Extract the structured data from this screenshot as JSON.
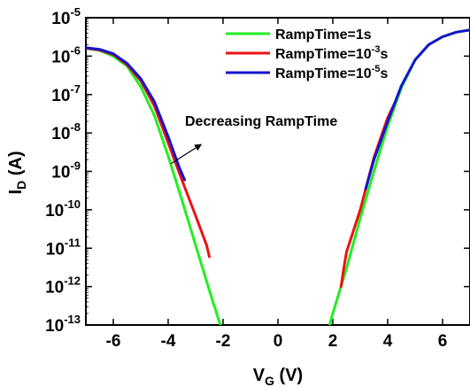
{
  "chart_data": {
    "type": "line",
    "xlabel": {
      "main": "V",
      "sub": "G",
      "unit": " (V)"
    },
    "ylabel": {
      "main": "I",
      "sub": "D",
      "unit": " (A)"
    },
    "xlim": [
      -7,
      7
    ],
    "ylim_exp": [
      -13,
      -5
    ],
    "x_ticks": [
      -6,
      -4,
      -2,
      0,
      2,
      4,
      6
    ],
    "x_tick_labels": [
      "-6",
      "-4",
      "-2",
      "0",
      "2",
      "4",
      "6"
    ],
    "y_ticks_exp": [
      -13,
      -12,
      -11,
      -10,
      -9,
      -8,
      -7,
      -6,
      -5
    ],
    "y_tick_labels": [
      {
        "base": "10",
        "exp": "-13"
      },
      {
        "base": "10",
        "exp": "-12"
      },
      {
        "base": "10",
        "exp": "-11"
      },
      {
        "base": "10",
        "exp": "-10"
      },
      {
        "base": "10",
        "exp": "-9"
      },
      {
        "base": "10",
        "exp": "-8"
      },
      {
        "base": "10",
        "exp": "-7"
      },
      {
        "base": "10",
        "exp": "-6"
      },
      {
        "base": "10",
        "exp": "-5"
      }
    ],
    "y_scale": "log",
    "legend_position": "top-right",
    "series": [
      {
        "name": "RampTime=1s",
        "legend": {
          "text": "RampTime=1s",
          "sup": "",
          "suffix": ""
        },
        "color": "#22ee22",
        "segments": [
          [
            [
              -7,
              1.6e-06
            ],
            [
              -6.5,
              1.4e-06
            ],
            [
              -6,
              1e-06
            ],
            [
              -5.5,
              5.5e-07
            ],
            [
              -5,
              1.6e-07
            ],
            [
              -4.5,
              2.8e-08
            ],
            [
              -4,
              2.5e-09
            ],
            [
              -3.5,
              1.8e-10
            ],
            [
              -3,
              1.2e-11
            ],
            [
              -2.5,
              8e-13
            ],
            [
              -2,
              6e-14
            ],
            [
              -1.6,
              1e-14
            ]
          ],
          [
            [
              1.5,
              1e-14
            ],
            [
              2,
              2e-13
            ],
            [
              2.5,
              3e-12
            ],
            [
              3,
              6e-11
            ],
            [
              3.5,
              1e-09
            ],
            [
              4,
              1.5e-08
            ],
            [
              4.5,
              1.5e-07
            ],
            [
              5,
              8e-07
            ],
            [
              5.5,
              2e-06
            ],
            [
              6,
              3.2e-06
            ],
            [
              6.5,
              4.2e-06
            ],
            [
              7,
              4.8e-06
            ]
          ]
        ]
      },
      {
        "name": "RampTime=10-3s",
        "legend": {
          "text": "RampTime=10",
          "sup": "-3",
          "suffix": "s"
        },
        "color": "#ee1111",
        "segments": [
          [
            [
              -7,
              1.6e-06
            ],
            [
              -6.5,
              1.45e-06
            ],
            [
              -6,
              1.1e-06
            ],
            [
              -5.5,
              6e-07
            ],
            [
              -5,
              2.3e-07
            ],
            [
              -4.5,
              5e-08
            ],
            [
              -4,
              5.5e-09
            ],
            [
              -3.5,
              6e-10
            ],
            [
              -3,
              7e-11
            ],
            [
              -2.6,
              1.2e-11
            ],
            [
              -2.5,
              6e-12
            ]
          ],
          [
            [
              2.3,
              1e-12
            ],
            [
              2.4,
              3e-12
            ],
            [
              2.5,
              8e-12
            ],
            [
              3,
              1e-10
            ],
            [
              3.5,
              2.3e-09
            ],
            [
              4,
              2.5e-08
            ],
            [
              4.3,
              7e-08
            ]
          ]
        ]
      },
      {
        "name": "RampTime=10-5s",
        "legend": {
          "text": "RampTime=10",
          "sup": "-5",
          "suffix": "s"
        },
        "color": "#1515cc",
        "segments": [
          [
            [
              -7,
              1.65e-06
            ],
            [
              -6.5,
              1.5e-06
            ],
            [
              -6,
              1.15e-06
            ],
            [
              -5.5,
              6.5e-07
            ],
            [
              -5,
              2.6e-07
            ],
            [
              -4.5,
              6.5e-08
            ],
            [
              -4,
              8e-09
            ],
            [
              -3.6,
              1.3e-09
            ],
            [
              -3.4,
              6e-10
            ]
          ],
          [
            [
              3.2,
              3.5e-10
            ],
            [
              3.5,
              2e-09
            ],
            [
              4,
              2e-08
            ],
            [
              4.5,
              1.7e-07
            ],
            [
              5,
              8e-07
            ],
            [
              5.5,
              2e-06
            ],
            [
              6,
              3.2e-06
            ],
            [
              6.5,
              4.2e-06
            ],
            [
              7,
              4.8e-06
            ]
          ]
        ]
      }
    ],
    "annotation": {
      "text": "Decreasing RampTime",
      "arrow_from": [
        -3.9,
        -8.8
      ],
      "arrow_to": [
        -2.8,
        -8.3
      ]
    }
  }
}
